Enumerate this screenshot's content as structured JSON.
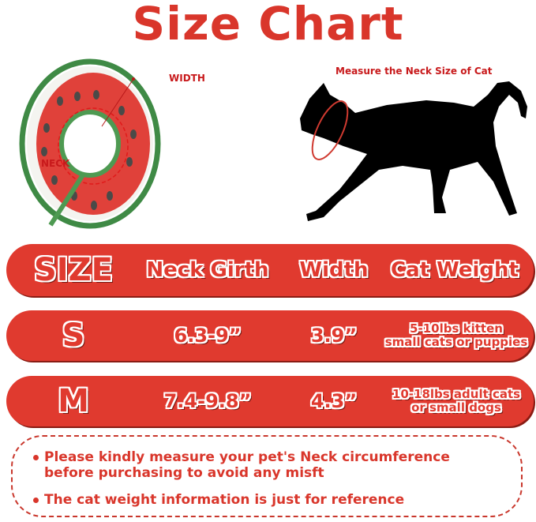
{
  "title": "Size Chart",
  "collar_diagram": {
    "width_label": "WIDTH",
    "neck_label": "NECK"
  },
  "cat_diagram": {
    "caption": "Measure the Neck Size of Cat"
  },
  "table": {
    "headers": [
      "SIZE",
      "Neck Girth",
      "Width",
      "Cat Weight"
    ],
    "rows": [
      {
        "size": "S",
        "neck_girth": "6.3-9”",
        "width": "3.9”",
        "weight_line1": "5-10lbs kitten",
        "weight_line2": "small cats or puppies"
      },
      {
        "size": "M",
        "neck_girth": "7.4-9.8”",
        "width": "4.3”",
        "weight_line1": "10-18lbs adult cats",
        "weight_line2": "or small dogs"
      }
    ]
  },
  "notes": [
    "Please kindly measure your pet's Neck circumference before purchasing to avoid any misft",
    "The cat weight information is just for reference"
  ],
  "colors": {
    "accent": "#e03a2f",
    "title": "#d9362b",
    "rind": "#3f8a45"
  }
}
